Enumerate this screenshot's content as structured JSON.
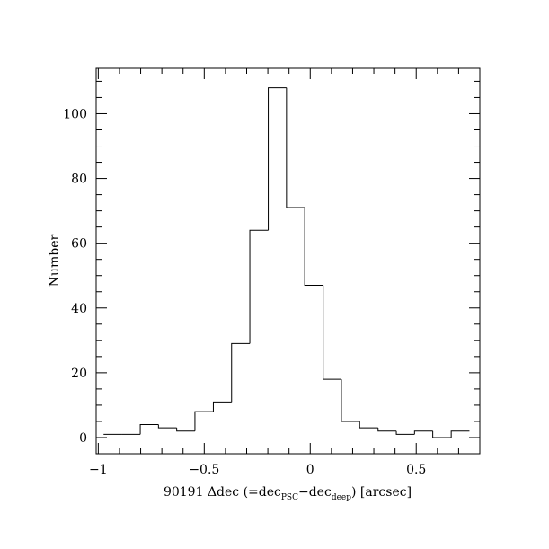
{
  "chart_data": {
    "type": "histogram",
    "xlabel": [
      "90191 Δdec (=dec",
      "PSC",
      "−dec",
      "deep",
      ") [arcsec]"
    ],
    "ylabel": "Number",
    "bins": [
      -0.975,
      -0.889,
      -0.802,
      -0.716,
      -0.63,
      -0.544,
      -0.457,
      -0.371,
      -0.285,
      -0.198,
      -0.112,
      -0.026,
      0.061,
      0.147,
      0.233,
      0.32,
      0.406,
      0.492,
      0.578,
      0.665,
      0.751
    ],
    "values": [
      1,
      1,
      4,
      3,
      2,
      8,
      11,
      29,
      64,
      108,
      71,
      47,
      18,
      5,
      3,
      2,
      1,
      2,
      0,
      2
    ],
    "color": "#000000",
    "xlim": [
      -1.01,
      0.8
    ],
    "ylim": [
      -5,
      114
    ],
    "xticks": [
      {
        "value": -1,
        "label": "−1"
      },
      {
        "value": -0.5,
        "label": "−0.5"
      },
      0,
      0.5
    ],
    "yticks": [
      0,
      20,
      40,
      60,
      80,
      100
    ],
    "xminorticks": [
      -0.9,
      -0.8,
      -0.7,
      -0.6,
      -0.4,
      -0.3,
      -0.2,
      -0.1,
      0.1,
      0.2,
      0.3,
      0.4,
      0.6,
      0.7
    ],
    "yminorticks": [
      5,
      10,
      15,
      25,
      30,
      35,
      45,
      50,
      55,
      65,
      70,
      75,
      85,
      90,
      95,
      105,
      110
    ]
  }
}
